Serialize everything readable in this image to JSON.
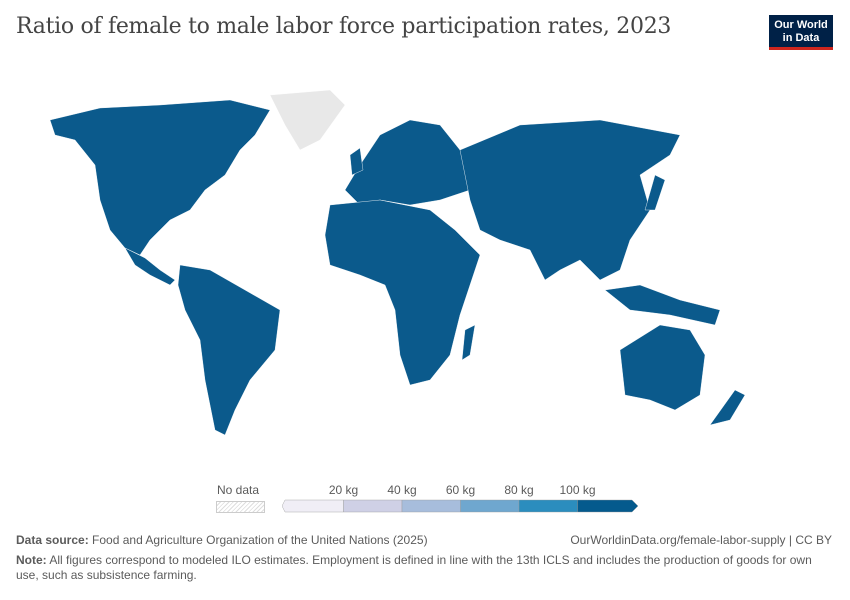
{
  "title": "Ratio of female to male labor force participation rates, 2023",
  "logo": {
    "line1": "Our World",
    "line2": "in Data"
  },
  "chart_data": {
    "type": "choropleth",
    "title": "Ratio of female to male labor force participation rates, 2023",
    "legend": {
      "no_data_label": "No data",
      "ticks": [
        "20 kg",
        "40 kg",
        "60 kg",
        "80 kg",
        "100 kg"
      ],
      "bin_colors": [
        "#f0eef6",
        "#cfd0e6",
        "#a7bddc",
        "#6fa7cf",
        "#2b8dbe",
        "#045a8d"
      ]
    },
    "map_fill_color": "#0b5a8c",
    "no_data_color": "#e8e8e8",
    "observation": "Nearly all countries fall in the top bin (>100 kg); Greenland and a few small regions show no data."
  },
  "footer": {
    "source_label": "Data source:",
    "source": "Food and Agriculture Organization of the United Nations (2025)",
    "url": "OurWorldinData.org/female-labor-supply | CC BY",
    "note_label": "Note:",
    "note": "All figures correspond to modeled ILO estimates. Employment is defined in line with the 13th ICLS and includes the production of goods for own use, such as subsistence farming."
  }
}
